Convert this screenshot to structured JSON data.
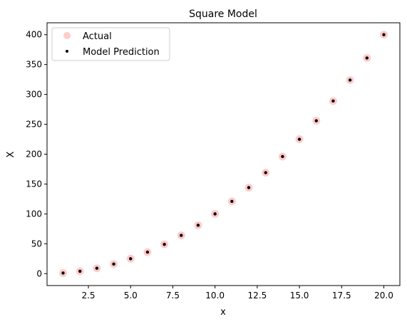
{
  "chart_data": {
    "type": "scatter",
    "title": "Square Model",
    "xlabel": "x",
    "ylabel": "X",
    "xlim": [
      0.05,
      20.95
    ],
    "ylim": [
      -19.95,
      419.95
    ],
    "xticks": [
      2.5,
      5.0,
      7.5,
      10.0,
      12.5,
      15.0,
      17.5,
      20.0
    ],
    "xtick_labels": [
      "2.5",
      "5.0",
      "7.5",
      "10.0",
      "12.5",
      "15.0",
      "17.5",
      "20.0"
    ],
    "yticks": [
      0,
      50,
      100,
      150,
      200,
      250,
      300,
      350,
      400
    ],
    "ytick_labels": [
      "0",
      "50",
      "100",
      "150",
      "200",
      "250",
      "300",
      "350",
      "400"
    ],
    "grid": false,
    "legend_position": "top-left",
    "x": [
      1,
      2,
      3,
      4,
      5,
      6,
      7,
      8,
      9,
      10,
      11,
      12,
      13,
      14,
      15,
      16,
      17,
      18,
      19,
      20
    ],
    "series": [
      {
        "name": "Actual",
        "color": "#ff0000",
        "alpha": 0.2,
        "marker": "circle-large",
        "values": [
          1,
          4,
          9,
          16,
          25,
          36,
          49,
          64,
          81,
          100,
          121,
          144,
          169,
          196,
          225,
          256,
          289,
          324,
          361,
          400
        ]
      },
      {
        "name": "Model Prediction",
        "color": "#000000",
        "marker": "circle-small",
        "values": [
          1,
          4,
          9,
          16,
          25,
          36,
          49,
          64,
          81,
          100,
          121,
          144,
          169,
          196,
          225,
          256,
          289,
          324,
          361,
          400
        ]
      }
    ]
  }
}
